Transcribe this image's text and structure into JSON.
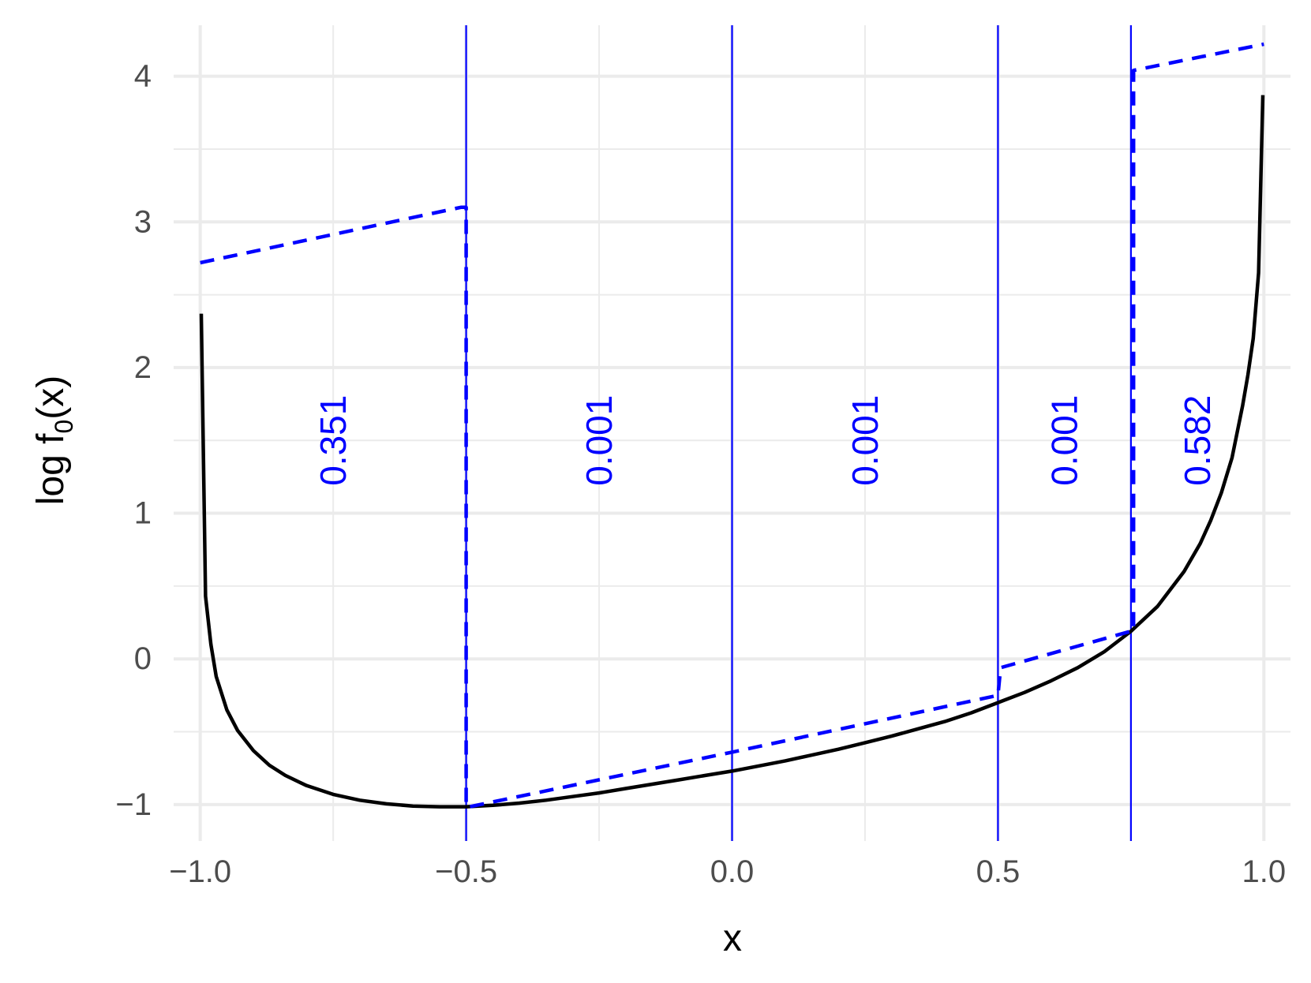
{
  "chart_data": {
    "type": "line",
    "xlabel": "x",
    "ylabel": {
      "prefix": "log f",
      "subscript": "0",
      "suffix": "(x)"
    },
    "xlim": [
      -1.05,
      1.05
    ],
    "ylim": [
      -1.25,
      4.35
    ],
    "x_ticks": [
      {
        "value": -1.0,
        "label": "−1.0"
      },
      {
        "value": -0.5,
        "label": "−0.5"
      },
      {
        "value": 0.0,
        "label": "0.0"
      },
      {
        "value": 0.5,
        "label": "0.5"
      },
      {
        "value": 1.0,
        "label": "1.0"
      }
    ],
    "x_minor_ticks": [
      -0.75,
      -0.25,
      0.25,
      0.75
    ],
    "y_ticks": [
      {
        "value": -1,
        "label": "−1"
      },
      {
        "value": 0,
        "label": "0"
      },
      {
        "value": 1,
        "label": "1"
      },
      {
        "value": 2,
        "label": "2"
      },
      {
        "value": 3,
        "label": "3"
      },
      {
        "value": 4,
        "label": "4"
      }
    ],
    "y_minor_ticks": [
      -0.5,
      0.5,
      1.5,
      2.5,
      3.5
    ],
    "grid": true,
    "colors": {
      "curve": "#000000",
      "envelope": "#0000ff",
      "breakpoints": "#0000ff",
      "grid": "#ebebeb",
      "tick_text": "#4d4d4d"
    },
    "breakpoints": [
      -0.5,
      0.0,
      0.5,
      0.75
    ],
    "region_labels": [
      {
        "x": -0.75,
        "y": 1.5,
        "text": "0.351"
      },
      {
        "x": -0.25,
        "y": 1.5,
        "text": "0.001"
      },
      {
        "x": 0.25,
        "y": 1.5,
        "text": "0.001"
      },
      {
        "x": 0.625,
        "y": 1.5,
        "text": "0.001"
      },
      {
        "x": 0.875,
        "y": 1.5,
        "text": "0.582"
      }
    ],
    "series": [
      {
        "style": "solid",
        "color": "#000000",
        "x": [
          -0.998,
          -0.99,
          -0.98,
          -0.97,
          -0.95,
          -0.93,
          -0.9,
          -0.87,
          -0.84,
          -0.8,
          -0.75,
          -0.7,
          -0.65,
          -0.6,
          -0.55,
          -0.5,
          -0.45,
          -0.4,
          -0.35,
          -0.3,
          -0.25,
          -0.2,
          -0.15,
          -0.1,
          -0.05,
          0.0,
          0.05,
          0.1,
          0.15,
          0.2,
          0.25,
          0.3,
          0.35,
          0.4,
          0.45,
          0.5,
          0.55,
          0.6,
          0.65,
          0.7,
          0.75,
          0.8,
          0.85,
          0.88,
          0.9,
          0.92,
          0.94,
          0.96,
          0.97,
          0.98,
          0.99,
          0.998
        ],
        "y": [
          2.37,
          0.43,
          0.1,
          -0.12,
          -0.35,
          -0.49,
          -0.63,
          -0.73,
          -0.8,
          -0.87,
          -0.93,
          -0.97,
          -0.995,
          -1.01,
          -1.015,
          -1.015,
          -1.005,
          -0.99,
          -0.97,
          -0.945,
          -0.92,
          -0.89,
          -0.86,
          -0.83,
          -0.8,
          -0.77,
          -0.735,
          -0.7,
          -0.66,
          -0.62,
          -0.575,
          -0.53,
          -0.48,
          -0.43,
          -0.37,
          -0.3,
          -0.23,
          -0.15,
          -0.06,
          0.05,
          0.19,
          0.36,
          0.6,
          0.79,
          0.95,
          1.14,
          1.38,
          1.74,
          1.95,
          2.2,
          2.65,
          3.87
        ]
      },
      {
        "style": "dashed",
        "color": "#0000ff",
        "x": [
          -1.0,
          -0.51,
          -0.51,
          -0.5,
          -0.5,
          0.0,
          0.5,
          0.505,
          0.75,
          0.75,
          0.755,
          0.755,
          1.0
        ],
        "y": [
          2.72,
          3.1,
          3.1,
          3.1,
          -1.02,
          -0.64,
          -0.25,
          -0.06,
          0.19,
          0.19,
          0.19,
          4.04,
          4.22
        ]
      }
    ]
  }
}
